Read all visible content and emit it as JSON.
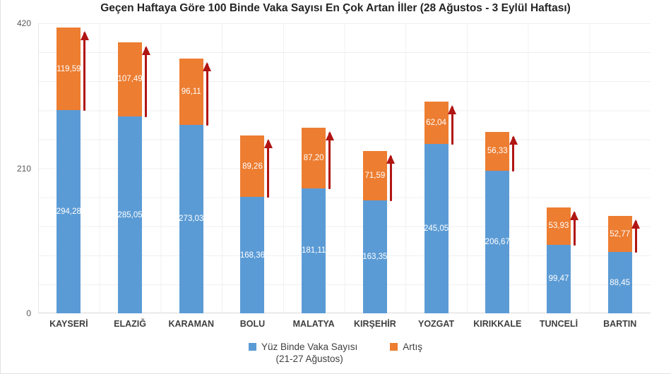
{
  "title": "Geçen Haftaya Göre 100 Binde Vaka Sayısı En Çok Artan İller (28 Ağustos - 3 Eylül Haftası)",
  "chart_data": {
    "type": "bar",
    "stacked": true,
    "title": "Geçen Haftaya Göre 100 Binde Vaka Sayısı En Çok Artan İller (28 Ağustos - 3 Eylül Haftası)",
    "categories": [
      "KAYSERİ",
      "ELAZIĞ",
      "KARAMAN",
      "BOLU",
      "MALATYA",
      "KIRŞEHİR",
      "YOZGAT",
      "KIRIKKALE",
      "TUNCELİ",
      "BARTIN"
    ],
    "series": [
      {
        "name": "Yüz Binde Vaka Sayısı",
        "name_line2": "(21-27 Ağustos)",
        "color": "#5B9BD5",
        "values": [
          294.28,
          285.05,
          273.03,
          168.36,
          181.11,
          163.35,
          245.05,
          206.67,
          99.47,
          88.45
        ]
      },
      {
        "name": "Artış",
        "name_line2": "",
        "color": "#ED7D31",
        "values": [
          119.59,
          107.49,
          96.11,
          89.26,
          87.2,
          71.59,
          62.04,
          56.33,
          53.93,
          52.77
        ]
      }
    ],
    "y_ticks": [
      0,
      210,
      420
    ],
    "ylim": [
      0,
      420
    ],
    "xlabel": "",
    "ylabel": "",
    "grid": true,
    "legend_position": "bottom",
    "annotation": "dark red upward arrow beside the increase segment of every bar",
    "arrow_color": "#B01513",
    "label_color": "#ffffff",
    "decimal_separator": ","
  }
}
